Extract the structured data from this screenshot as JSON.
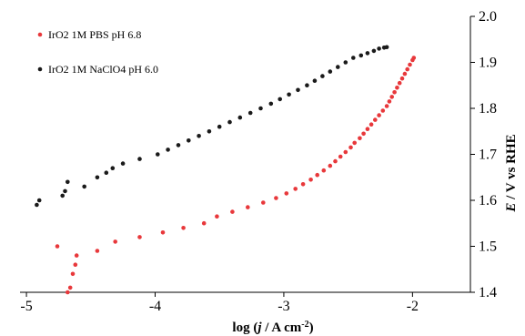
{
  "chart_data": {
    "type": "scatter",
    "xlabel": {
      "prefix": "log (",
      "italic": "j",
      "middle": " / A cm",
      "sup": "-2",
      "suffix": ")"
    },
    "ylabel": {
      "italic": "E",
      "rest": " / V vs RHE"
    },
    "xlim": [
      -5.05,
      -1.55
    ],
    "ylim": [
      1.4,
      2.0
    ],
    "xticks": [
      -5,
      -4,
      -3,
      -2
    ],
    "yticks": [
      1.4,
      1.5,
      1.6,
      1.7,
      1.8,
      1.9,
      2.0
    ],
    "xtick_labels": [
      "-5",
      "-4",
      "-3",
      "-2"
    ],
    "ytick_labels": [
      "1.4",
      "1.5",
      "1.6",
      "1.7",
      "1.8",
      "1.9",
      "2.0"
    ],
    "grid": false,
    "legend_position": "top-left",
    "series": [
      {
        "name": "IrO2 1M PBS pH 6.8",
        "color": "#e8383b",
        "points": [
          [
            -4.76,
            1.5
          ],
          [
            -4.68,
            1.4
          ],
          [
            -4.66,
            1.41
          ],
          [
            -4.64,
            1.44
          ],
          [
            -4.62,
            1.46
          ],
          [
            -4.61,
            1.48
          ],
          [
            -4.45,
            1.49
          ],
          [
            -4.31,
            1.51
          ],
          [
            -4.12,
            1.52
          ],
          [
            -3.94,
            1.53
          ],
          [
            -3.78,
            1.54
          ],
          [
            -3.62,
            1.55
          ],
          [
            -3.52,
            1.565
          ],
          [
            -3.4,
            1.575
          ],
          [
            -3.28,
            1.585
          ],
          [
            -3.16,
            1.595
          ],
          [
            -3.06,
            1.605
          ],
          [
            -2.98,
            1.615
          ],
          [
            -2.91,
            1.625
          ],
          [
            -2.85,
            1.635
          ],
          [
            -2.79,
            1.645
          ],
          [
            -2.74,
            1.655
          ],
          [
            -2.69,
            1.665
          ],
          [
            -2.64,
            1.675
          ],
          [
            -2.6,
            1.685
          ],
          [
            -2.56,
            1.695
          ],
          [
            -2.52,
            1.705
          ],
          [
            -2.48,
            1.715
          ],
          [
            -2.45,
            1.725
          ],
          [
            -2.41,
            1.735
          ],
          [
            -2.38,
            1.745
          ],
          [
            -2.35,
            1.755
          ],
          [
            -2.32,
            1.765
          ],
          [
            -2.29,
            1.775
          ],
          [
            -2.26,
            1.785
          ],
          [
            -2.23,
            1.795
          ],
          [
            -2.2,
            1.805
          ],
          [
            -2.18,
            1.815
          ],
          [
            -2.16,
            1.825
          ],
          [
            -2.14,
            1.835
          ],
          [
            -2.12,
            1.845
          ],
          [
            -2.1,
            1.855
          ],
          [
            -2.08,
            1.865
          ],
          [
            -2.06,
            1.875
          ],
          [
            -2.04,
            1.885
          ],
          [
            -2.02,
            1.895
          ],
          [
            -2.0,
            1.905
          ],
          [
            -1.99,
            1.91
          ]
        ]
      },
      {
        "name": "IrO2 1M NaClO4 pH 6.0",
        "color": "#1a1a1a",
        "points": [
          [
            -4.92,
            1.59
          ],
          [
            -4.9,
            1.6
          ],
          [
            -4.72,
            1.61
          ],
          [
            -4.7,
            1.62
          ],
          [
            -4.68,
            1.64
          ],
          [
            -4.55,
            1.63
          ],
          [
            -4.45,
            1.65
          ],
          [
            -4.38,
            1.66
          ],
          [
            -4.33,
            1.67
          ],
          [
            -4.25,
            1.68
          ],
          [
            -4.12,
            1.69
          ],
          [
            -3.98,
            1.7
          ],
          [
            -3.9,
            1.71
          ],
          [
            -3.82,
            1.72
          ],
          [
            -3.74,
            1.73
          ],
          [
            -3.66,
            1.74
          ],
          [
            -3.58,
            1.75
          ],
          [
            -3.5,
            1.76
          ],
          [
            -3.42,
            1.77
          ],
          [
            -3.34,
            1.78
          ],
          [
            -3.26,
            1.79
          ],
          [
            -3.18,
            1.8
          ],
          [
            -3.1,
            1.81
          ],
          [
            -3.03,
            1.82
          ],
          [
            -2.96,
            1.83
          ],
          [
            -2.89,
            1.84
          ],
          [
            -2.82,
            1.85
          ],
          [
            -2.76,
            1.86
          ],
          [
            -2.7,
            1.87
          ],
          [
            -2.64,
            1.88
          ],
          [
            -2.58,
            1.89
          ],
          [
            -2.52,
            1.9
          ],
          [
            -2.46,
            1.91
          ],
          [
            -2.4,
            1.915
          ],
          [
            -2.35,
            1.92
          ],
          [
            -2.3,
            1.925
          ],
          [
            -2.26,
            1.93
          ],
          [
            -2.22,
            1.932
          ],
          [
            -2.2,
            1.933
          ]
        ]
      }
    ]
  }
}
